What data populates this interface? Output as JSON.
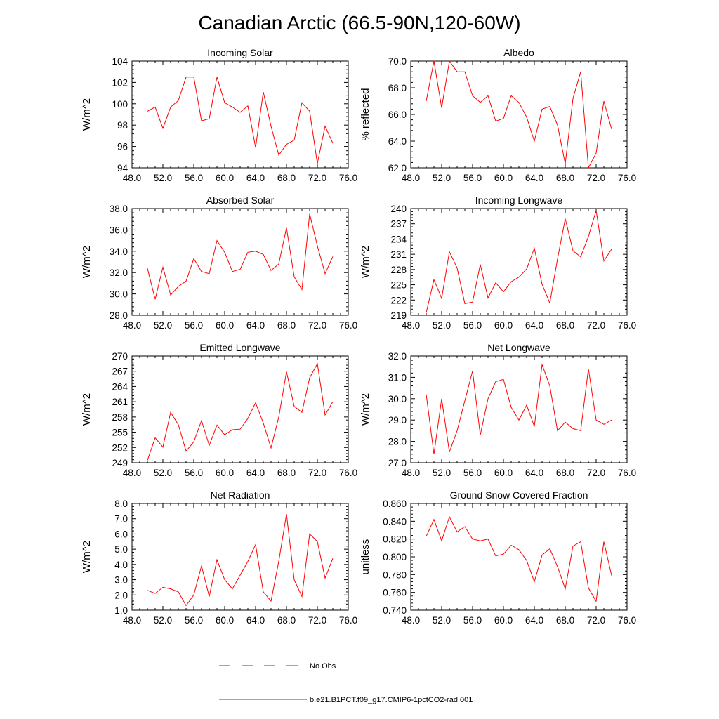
{
  "title": "Canadian Arctic (66.5-90N,120-60W)",
  "colors": {
    "model": "#ff0000",
    "obs": "#3c3cb4",
    "axis": "#000000"
  },
  "legend": {
    "obs_label": "No Obs",
    "model_label": "b.e21.B1PCT.f09_g17.CMIP6-1pctCO2-rad.001"
  },
  "chart_data": [
    {
      "type": "line",
      "title": "Incoming Solar",
      "ylabel": "W/m^2",
      "xlim": [
        48,
        76
      ],
      "ylim": [
        94,
        104
      ],
      "xticks": [
        "48.0",
        "52.0",
        "56.0",
        "60.0",
        "64.0",
        "68.0",
        "72.0",
        "76.0"
      ],
      "yticks": [
        "94",
        "96",
        "98",
        "100",
        "102",
        "104"
      ],
      "x": [
        50,
        51,
        52,
        53,
        54,
        55,
        56,
        57,
        58,
        59,
        60,
        61,
        62,
        63,
        64,
        65,
        66,
        67,
        68,
        69,
        70,
        71,
        72,
        73,
        74
      ],
      "series": [
        {
          "values": [
            99.3,
            99.7,
            97.7,
            99.7,
            100.3,
            102.5,
            102.5,
            98.4,
            98.6,
            102.5,
            100.1,
            99.7,
            99.2,
            99.8,
            95.9,
            101.1,
            97.9,
            95.2,
            96.2,
            96.6,
            100.1,
            99.3,
            94.4,
            97.9,
            96.3
          ]
        }
      ]
    },
    {
      "type": "line",
      "title": "Albedo",
      "ylabel": "% reflected",
      "xlim": [
        48,
        76
      ],
      "ylim": [
        62,
        70
      ],
      "xticks": [
        "48.0",
        "52.0",
        "56.0",
        "60.0",
        "64.0",
        "68.0",
        "72.0",
        "76.0"
      ],
      "yticks": [
        "62.0",
        "64.0",
        "66.0",
        "68.0",
        "70.0"
      ],
      "x": [
        50,
        51,
        52,
        53,
        54,
        55,
        56,
        57,
        58,
        59,
        60,
        61,
        62,
        63,
        64,
        65,
        66,
        67,
        68,
        69,
        70,
        71,
        72,
        73,
        74
      ],
      "series": [
        {
          "values": [
            67.0,
            70.0,
            66.5,
            70.0,
            69.2,
            69.2,
            67.4,
            66.9,
            67.4,
            65.5,
            65.7,
            67.4,
            66.9,
            65.8,
            64.0,
            66.4,
            66.6,
            65.2,
            62.3,
            67.2,
            69.2,
            62.0,
            63.1,
            67.0,
            64.9
          ]
        }
      ]
    },
    {
      "type": "line",
      "title": "Absorbed Solar",
      "ylabel": "W/m^2",
      "xlim": [
        48,
        76
      ],
      "ylim": [
        28,
        38
      ],
      "xticks": [
        "48.0",
        "52.0",
        "56.0",
        "60.0",
        "64.0",
        "68.0",
        "72.0",
        "76.0"
      ],
      "yticks": [
        "28.0",
        "30.0",
        "32.0",
        "34.0",
        "36.0",
        "38.0"
      ],
      "x": [
        50,
        51,
        52,
        53,
        54,
        55,
        56,
        57,
        58,
        59,
        60,
        61,
        62,
        63,
        64,
        65,
        66,
        67,
        68,
        69,
        70,
        71,
        72,
        73,
        74
      ],
      "series": [
        {
          "values": [
            32.4,
            29.5,
            32.5,
            29.9,
            30.7,
            31.2,
            33.3,
            32.1,
            31.9,
            35.0,
            33.9,
            32.1,
            32.3,
            33.9,
            34.0,
            33.7,
            32.2,
            32.8,
            36.2,
            31.6,
            30.4,
            37.5,
            34.5,
            31.9,
            33.5
          ]
        }
      ]
    },
    {
      "type": "line",
      "title": "Incoming Longwave",
      "ylabel": "W/m^2",
      "xlim": [
        48,
        76
      ],
      "ylim": [
        219,
        240
      ],
      "xticks": [
        "48.0",
        "52.0",
        "56.0",
        "60.0",
        "64.0",
        "68.0",
        "72.0",
        "76.0"
      ],
      "yticks": [
        "219",
        "222",
        "225",
        "228",
        "231",
        "234",
        "237",
        "240"
      ],
      "x": [
        50,
        51,
        52,
        53,
        54,
        55,
        56,
        57,
        58,
        59,
        60,
        61,
        62,
        63,
        64,
        65,
        66,
        67,
        68,
        69,
        70,
        71,
        72,
        73,
        74
      ],
      "series": [
        {
          "values": [
            219.5,
            226.0,
            222.3,
            231.5,
            228.3,
            221.3,
            221.6,
            229.0,
            222.4,
            225.4,
            223.6,
            225.6,
            226.5,
            228.1,
            232.2,
            225.1,
            221.4,
            230.1,
            238.0,
            231.7,
            230.5,
            234.5,
            239.6,
            229.7,
            232.0
          ]
        }
      ]
    },
    {
      "type": "line",
      "title": "Emitted Longwave",
      "ylabel": "W/m^2",
      "xlim": [
        48,
        76
      ],
      "ylim": [
        249,
        270
      ],
      "xticks": [
        "48.0",
        "52.0",
        "56.0",
        "60.0",
        "64.0",
        "68.0",
        "72.0",
        "76.0"
      ],
      "yticks": [
        "249",
        "252",
        "255",
        "258",
        "261",
        "264",
        "267",
        "270"
      ],
      "x": [
        50,
        51,
        52,
        53,
        54,
        55,
        56,
        57,
        58,
        59,
        60,
        61,
        62,
        63,
        64,
        65,
        66,
        67,
        68,
        69,
        70,
        71,
        72,
        73,
        74
      ],
      "series": [
        {
          "values": [
            249.5,
            253.9,
            252.1,
            258.9,
            256.5,
            251.3,
            253.1,
            257.3,
            252.4,
            256.4,
            254.5,
            255.5,
            255.6,
            257.7,
            260.8,
            256.8,
            251.9,
            258.0,
            266.9,
            260.1,
            258.9,
            265.7,
            268.5,
            258.4,
            261.0
          ]
        }
      ]
    },
    {
      "type": "line",
      "title": "Net Longwave",
      "ylabel": "W/m^2",
      "xlim": [
        48,
        76
      ],
      "ylim": [
        27,
        32
      ],
      "xticks": [
        "48.0",
        "52.0",
        "56.0",
        "60.0",
        "64.0",
        "68.0",
        "72.0",
        "76.0"
      ],
      "yticks": [
        "27.0",
        "28.0",
        "29.0",
        "30.0",
        "31.0",
        "32.0"
      ],
      "x": [
        50,
        51,
        52,
        53,
        54,
        55,
        56,
        57,
        58,
        59,
        60,
        61,
        62,
        63,
        64,
        65,
        66,
        67,
        68,
        69,
        70,
        71,
        72,
        73,
        74
      ],
      "series": [
        {
          "values": [
            30.2,
            27.4,
            30.0,
            27.5,
            28.5,
            29.9,
            31.3,
            28.3,
            30.0,
            30.8,
            30.9,
            29.6,
            29.0,
            29.7,
            28.7,
            31.6,
            30.6,
            28.5,
            28.9,
            28.6,
            28.5,
            31.4,
            29.0,
            28.8,
            29.0
          ]
        }
      ]
    },
    {
      "type": "line",
      "title": "Net Radiation",
      "ylabel": "W/m^2",
      "xlim": [
        48,
        76
      ],
      "ylim": [
        1,
        8
      ],
      "xticks": [
        "48.0",
        "52.0",
        "56.0",
        "60.0",
        "64.0",
        "68.0",
        "72.0",
        "76.0"
      ],
      "yticks": [
        "1.0",
        "2.0",
        "3.0",
        "4.0",
        "5.0",
        "6.0",
        "7.0",
        "8.0"
      ],
      "x": [
        50,
        51,
        52,
        53,
        54,
        55,
        56,
        57,
        58,
        59,
        60,
        61,
        62,
        63,
        64,
        65,
        66,
        67,
        68,
        69,
        70,
        71,
        72,
        73,
        74
      ],
      "series": [
        {
          "values": [
            2.3,
            2.1,
            2.5,
            2.4,
            2.2,
            1.3,
            2.0,
            3.9,
            1.9,
            4.3,
            3.0,
            2.4,
            3.3,
            4.2,
            5.3,
            2.2,
            1.6,
            4.2,
            7.3,
            3.0,
            1.9,
            6.0,
            5.5,
            3.1,
            4.4
          ]
        }
      ]
    },
    {
      "type": "line",
      "title": "Ground Snow Covered Fraction",
      "ylabel": "unitless",
      "xlim": [
        48,
        76
      ],
      "ylim": [
        0.74,
        0.86
      ],
      "xticks": [
        "48.0",
        "52.0",
        "56.0",
        "60.0",
        "64.0",
        "68.0",
        "72.0",
        "76.0"
      ],
      "yticks": [
        "0.740",
        "0.760",
        "0.780",
        "0.800",
        "0.820",
        "0.840",
        "0.860"
      ],
      "x": [
        50,
        51,
        52,
        53,
        54,
        55,
        56,
        57,
        58,
        59,
        60,
        61,
        62,
        63,
        64,
        65,
        66,
        67,
        68,
        69,
        70,
        71,
        72,
        73,
        74
      ],
      "series": [
        {
          "values": [
            0.823,
            0.842,
            0.818,
            0.845,
            0.828,
            0.834,
            0.82,
            0.818,
            0.82,
            0.801,
            0.803,
            0.813,
            0.808,
            0.796,
            0.772,
            0.802,
            0.809,
            0.789,
            0.764,
            0.812,
            0.817,
            0.765,
            0.75,
            0.817,
            0.779
          ]
        }
      ]
    }
  ]
}
